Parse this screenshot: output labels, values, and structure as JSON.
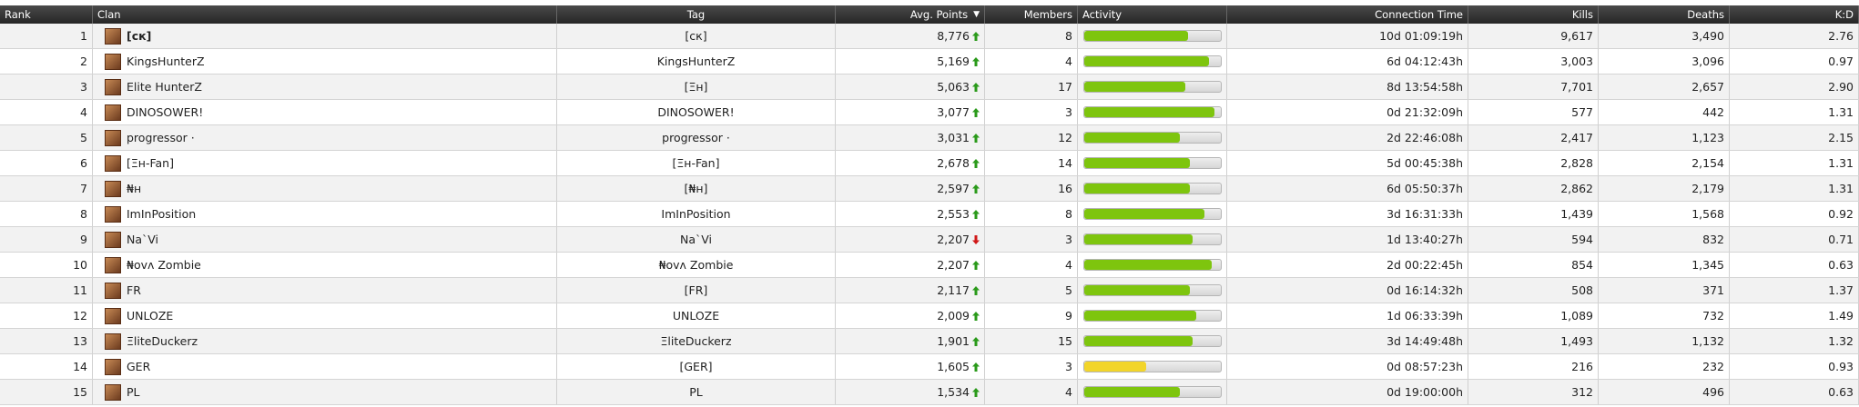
{
  "table": {
    "columns": [
      "Rank",
      "Clan",
      "Tag",
      "Avg. Points",
      "Members",
      "Activity",
      "Connection Time",
      "Kills",
      "Deaths",
      "K:D"
    ],
    "sort_arrow": "▼",
    "rows": [
      {
        "rank": "1",
        "clan": "[cк]",
        "bold": true,
        "tag": "[cк]",
        "avg_points": "8,776",
        "trend": "up",
        "members": "8",
        "activity": 76,
        "activity_color": "#7ec50e",
        "connection_time": "10d 01:09:19h",
        "kills": "9,617",
        "deaths": "3,490",
        "kd": "2.76"
      },
      {
        "rank": "2",
        "clan": "KingsHunterZ",
        "tag": "KingsHunterZ",
        "avg_points": "5,169",
        "trend": "up",
        "members": "4",
        "activity": 91,
        "activity_color": "#7ec50e",
        "connection_time": "6d 04:12:43h",
        "kills": "3,003",
        "deaths": "3,096",
        "kd": "0.97"
      },
      {
        "rank": "3",
        "clan": "Elite HunterZ",
        "tag": "[Ξн]",
        "avg_points": "5,063",
        "trend": "up",
        "members": "17",
        "activity": 74,
        "activity_color": "#7ec50e",
        "connection_time": "8d 13:54:58h",
        "kills": "7,701",
        "deaths": "2,657",
        "kd": "2.90"
      },
      {
        "rank": "4",
        "clan": "DINOSOWER!",
        "tag": "DINOSOWER!",
        "avg_points": "3,077",
        "trend": "up",
        "members": "3",
        "activity": 95,
        "activity_color": "#7ec50e",
        "connection_time": "0d 21:32:09h",
        "kills": "577",
        "deaths": "442",
        "kd": "1.31"
      },
      {
        "rank": "5",
        "clan": "progressor ·",
        "tag": "progressor ·",
        "avg_points": "3,031",
        "trend": "up",
        "members": "12",
        "activity": 70,
        "activity_color": "#7ec50e",
        "connection_time": "2d 22:46:08h",
        "kills": "2,417",
        "deaths": "1,123",
        "kd": "2.15"
      },
      {
        "rank": "6",
        "clan": "[Ξн-Fan]",
        "tag": "[Ξн-Fan]",
        "avg_points": "2,678",
        "trend": "up",
        "members": "14",
        "activity": 77,
        "activity_color": "#7ec50e",
        "connection_time": "5d 00:45:38h",
        "kills": "2,828",
        "deaths": "2,154",
        "kd": "1.31"
      },
      {
        "rank": "7",
        "clan": "₦н",
        "tag": "[₦н]",
        "avg_points": "2,597",
        "trend": "up",
        "members": "16",
        "activity": 77,
        "activity_color": "#7ec50e",
        "connection_time": "6d 05:50:37h",
        "kills": "2,862",
        "deaths": "2,179",
        "kd": "1.31"
      },
      {
        "rank": "8",
        "clan": "ImInPosition",
        "tag": "ImInPosition",
        "avg_points": "2,553",
        "trend": "up",
        "members": "8",
        "activity": 88,
        "activity_color": "#7ec50e",
        "connection_time": "3d 16:31:33h",
        "kills": "1,439",
        "deaths": "1,568",
        "kd": "0.92"
      },
      {
        "rank": "9",
        "clan": "Na`Vi",
        "tag": "Na`Vi",
        "avg_points": "2,207",
        "trend": "down",
        "members": "3",
        "activity": 79,
        "activity_color": "#7ec50e",
        "connection_time": "1d 13:40:27h",
        "kills": "594",
        "deaths": "832",
        "kd": "0.71"
      },
      {
        "rank": "10",
        "clan": "₦ovʌ Zombie",
        "tag": "₦ovʌ Zombie",
        "avg_points": "2,207",
        "trend": "up",
        "members": "4",
        "activity": 93,
        "activity_color": "#7ec50e",
        "connection_time": "2d 00:22:45h",
        "kills": "854",
        "deaths": "1,345",
        "kd": "0.63"
      },
      {
        "rank": "11",
        "clan": "FR",
        "tag": "[FR]",
        "avg_points": "2,117",
        "trend": "up",
        "members": "5",
        "activity": 77,
        "activity_color": "#7ec50e",
        "connection_time": "0d 16:14:32h",
        "kills": "508",
        "deaths": "371",
        "kd": "1.37"
      },
      {
        "rank": "12",
        "clan": "UNLOZE",
        "tag": "UNLOZE",
        "avg_points": "2,009",
        "trend": "up",
        "members": "9",
        "activity": 82,
        "activity_color": "#7ec50e",
        "connection_time": "1d 06:33:39h",
        "kills": "1,089",
        "deaths": "732",
        "kd": "1.49"
      },
      {
        "rank": "13",
        "clan": "ΞliteDuckerz",
        "tag": "ΞliteDuckerz",
        "avg_points": "1,901",
        "trend": "up",
        "members": "15",
        "activity": 79,
        "activity_color": "#7ec50e",
        "connection_time": "3d 14:49:48h",
        "kills": "1,493",
        "deaths": "1,132",
        "kd": "1.32"
      },
      {
        "rank": "14",
        "clan": "GER",
        "tag": "[GER]",
        "avg_points": "1,605",
        "trend": "up",
        "members": "3",
        "activity": 45,
        "activity_color": "#f2d52a",
        "connection_time": "0d 08:57:23h",
        "kills": "216",
        "deaths": "232",
        "kd": "0.93"
      },
      {
        "rank": "15",
        "clan": "PL",
        "tag": "PL",
        "avg_points": "1,534",
        "trend": "up",
        "members": "4",
        "activity": 70,
        "activity_color": "#7ec50e",
        "connection_time": "0d 19:00:00h",
        "kills": "312",
        "deaths": "496",
        "kd": "0.63"
      }
    ]
  }
}
